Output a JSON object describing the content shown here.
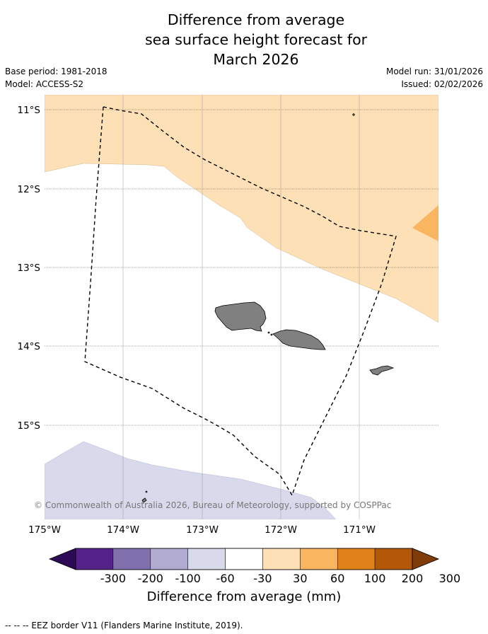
{
  "title_lines": [
    "Difference from average",
    "sea surface height forecast for",
    "March 2026"
  ],
  "base_period": "Base period: 1981-2018",
  "model": "Model: ACCESS-S2",
  "model_run": "Model run: 31/01/2026",
  "issued": "Issued: 02/02/2026",
  "copyright": "© Commonwealth of Australia 2026, Bureau of Meteorology, supported by COSPPac",
  "lat_labels": [
    "11°S",
    "12°S",
    "13°S",
    "14°S",
    "15°S"
  ],
  "lon_labels": [
    "175°W",
    "174°W",
    "173°W",
    "172°W",
    "171°W"
  ],
  "colorbar": {
    "title": "Difference from average (mm)",
    "ticks": [
      "-300",
      "-200",
      "-100",
      "-60",
      "-30",
      "30",
      "60",
      "100",
      "200",
      "300"
    ],
    "colors": [
      "#2d0a55",
      "#55228a",
      "#8170ae",
      "#b1abd2",
      "#d9d9ec",
      "#ffffff",
      "#fde0b6",
      "#f9b55f",
      "#e0811a",
      "#b35807",
      "#7f3b08"
    ]
  },
  "legend": {
    "eez": "-- -- -- EEZ border V11 (Flanders Marine Institute, 2019)."
  }
}
